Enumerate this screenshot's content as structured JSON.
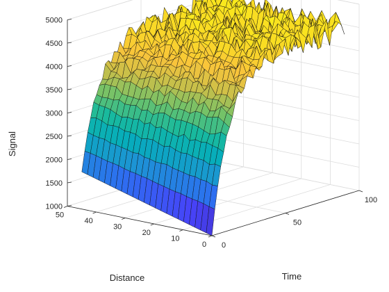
{
  "chart_data": {
    "type": "surface",
    "title": "",
    "xlabel": "Time",
    "ylabel": "Distance",
    "zlabel": "Signal",
    "xlim": [
      0,
      100
    ],
    "ylim": [
      0,
      50
    ],
    "zlim": [
      1000,
      5000
    ],
    "x_ticks": [
      "0",
      "50",
      "100"
    ],
    "y_ticks": [
      "0",
      "10",
      "20",
      "30",
      "40",
      "50"
    ],
    "z_ticks": [
      "1000",
      "1500",
      "2000",
      "2500",
      "3000",
      "3500",
      "4000",
      "4500",
      "5000"
    ],
    "grid": true,
    "colormap": "parula",
    "colormap_stops": [
      "#3e26a8",
      "#4743f8",
      "#2d6ff0",
      "#1b96d2",
      "#06adbb",
      "#19ba9d",
      "#6cc26b",
      "#c3bf4b",
      "#f9c43b",
      "#f9dd22",
      "#f9fb15"
    ],
    "edge_color": "#111111",
    "surface_model": {
      "time_range": [
        0,
        90
      ],
      "distance_range": [
        0,
        45
      ],
      "signal_start_near_distance_0": 1000,
      "signal_start_near_distance_45": 1800,
      "signal_plateau": 4600,
      "rise_time_constant": 12,
      "noise_amplitude_at_plateau": 250
    }
  }
}
